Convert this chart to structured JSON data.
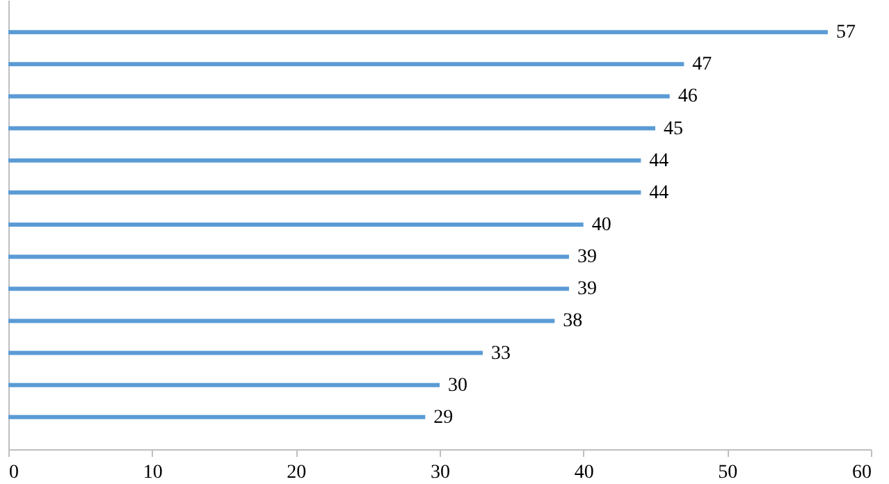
{
  "chart_data": {
    "type": "bar",
    "orientation": "horizontal",
    "categories": [
      null,
      null,
      null,
      null,
      null,
      null,
      null,
      null,
      null,
      null,
      null,
      null,
      null
    ],
    "values": [
      57,
      47,
      46,
      45,
      44,
      44,
      40,
      39,
      39,
      38,
      33,
      30,
      29
    ],
    "color": "#5b9bd5",
    "xlim": [
      0,
      60
    ],
    "xticks": [
      0,
      10,
      20,
      30,
      40,
      50,
      60
    ],
    "data_labels": true,
    "grid": false
  }
}
